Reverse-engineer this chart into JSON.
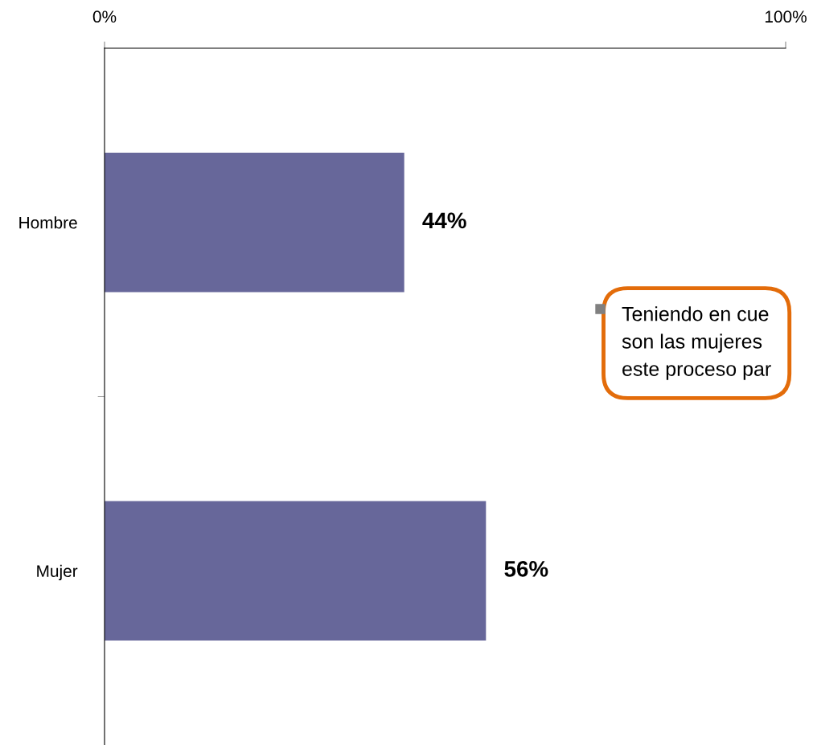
{
  "chart_data": {
    "type": "bar",
    "orientation": "horizontal",
    "categories": [
      "Hombre",
      "Mujer"
    ],
    "values": [
      44,
      56
    ],
    "color": "#67679a",
    "value_labels": [
      "44%",
      "56%"
    ],
    "xlim": [
      0,
      100
    ],
    "xticks": [
      {
        "value": 0,
        "label": "0%"
      },
      {
        "value": 100,
        "label": "100%"
      }
    ],
    "grid": false,
    "legend": false,
    "annotations": [
      "Teniendo en cue\nson las mujeres\neste proceso par"
    ]
  }
}
